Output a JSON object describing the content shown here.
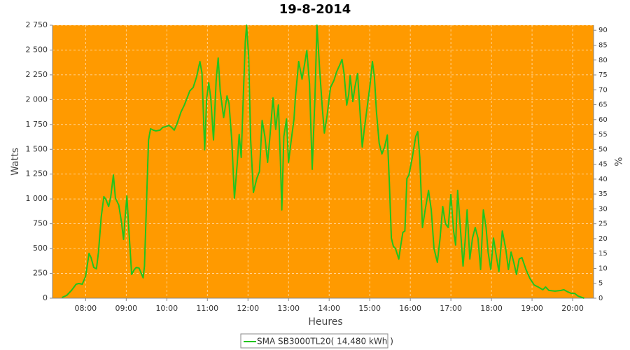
{
  "chart_data": {
    "type": "line",
    "title": "19-8-2014",
    "xlabel": "Heures",
    "ylabel": "Watts",
    "y2label": "%",
    "xlim": [
      431,
      1231
    ],
    "xticks": [
      {
        "value": 480,
        "label": "08:00"
      },
      {
        "value": 540,
        "label": "09:00"
      },
      {
        "value": 600,
        "label": "10:00"
      },
      {
        "value": 660,
        "label": "11:00"
      },
      {
        "value": 720,
        "label": "12:00"
      },
      {
        "value": 780,
        "label": "13:00"
      },
      {
        "value": 840,
        "label": "14:00"
      },
      {
        "value": 900,
        "label": "15:00"
      },
      {
        "value": 960,
        "label": "16:00"
      },
      {
        "value": 1020,
        "label": "17:00"
      },
      {
        "value": 1080,
        "label": "18:00"
      },
      {
        "value": 1140,
        "label": "19:00"
      },
      {
        "value": 1200,
        "label": "20:00"
      }
    ],
    "ylim": [
      0,
      2750
    ],
    "yticks": [
      0,
      250,
      500,
      750,
      {
        "value": 1000,
        "label": "1 000"
      },
      {
        "value": 1250,
        "label": "1 250"
      },
      {
        "value": 1500,
        "label": "1 500"
      },
      {
        "value": 1750,
        "label": "1 750"
      },
      {
        "value": 2000,
        "label": "2 000"
      },
      {
        "value": 2250,
        "label": "2 250"
      },
      {
        "value": 2500,
        "label": "2 500"
      },
      {
        "value": 2750,
        "label": "2 750"
      }
    ],
    "y2lim": [
      0,
      91.7
    ],
    "y2ticks": [
      0,
      5,
      10,
      15,
      20,
      25,
      30,
      35,
      40,
      45,
      50,
      55,
      60,
      65,
      70,
      75,
      80,
      85,
      90
    ],
    "grid": true,
    "legend": "bottom",
    "plot_background": "#ff9a00",
    "x": [
      445,
      452,
      459,
      466,
      470,
      475,
      480,
      485,
      488,
      492,
      496,
      499,
      503,
      507,
      510,
      514,
      517,
      521,
      524,
      529,
      533,
      536,
      538,
      541,
      544,
      548,
      552,
      555,
      559,
      562,
      565,
      567,
      570,
      573,
      576,
      580,
      584,
      590,
      594,
      599,
      603,
      607,
      611,
      615,
      621,
      626,
      630,
      634,
      639,
      644,
      649,
      652,
      656,
      659,
      662,
      665,
      669,
      673,
      676,
      679,
      684,
      689,
      692,
      696,
      700,
      704,
      707,
      710,
      713,
      716,
      718,
      721,
      724,
      728,
      733,
      737,
      741,
      745,
      749,
      752,
      757,
      761,
      765,
      768,
      770,
      773,
      777,
      780,
      784,
      788,
      790,
      795,
      800,
      804,
      807,
      811,
      815,
      819,
      822,
      826,
      830,
      833,
      837,
      842,
      847,
      851,
      856,
      859,
      862,
      866,
      869,
      871,
      875,
      878,
      882,
      885,
      889,
      892,
      896,
      900,
      904,
      907,
      910,
      914,
      918,
      922,
      926,
      929,
      932,
      935,
      938,
      943,
      946,
      949,
      952,
      955,
      958,
      963,
      968,
      971,
      974,
      978,
      982,
      987,
      991,
      995,
      1000,
      1004,
      1008,
      1012,
      1016,
      1020,
      1024,
      1027,
      1030,
      1034,
      1038,
      1041,
      1044,
      1048,
      1052,
      1056,
      1060,
      1064,
      1068,
      1072,
      1075,
      1079,
      1083,
      1087,
      1091,
      1096,
      1101,
      1105,
      1109,
      1113,
      1117,
      1121,
      1125,
      1131,
      1137,
      1143,
      1149,
      1156,
      1160,
      1165,
      1174,
      1183,
      1187,
      1193,
      1198,
      1203,
      1208,
      1214,
      1217
    ],
    "series": [
      {
        "name": "SMA SB3000TL20( 14,480 kWh )",
        "color": "#22c41e",
        "values": [
          7,
          28,
          78,
          141,
          148,
          141,
          219,
          451,
          409,
          310,
          296,
          465,
          818,
          1023,
          994,
          924,
          1016,
          1241,
          1008,
          938,
          762,
          592,
          783,
          1030,
          677,
          240,
          289,
          310,
          303,
          254,
          205,
          324,
          959,
          1594,
          1707,
          1693,
          1685,
          1693,
          1721,
          1728,
          1742,
          1721,
          1693,
          1756,
          1876,
          1946,
          2017,
          2087,
          2123,
          2228,
          2384,
          2271,
          1495,
          2017,
          2172,
          2017,
          1594,
          2193,
          2419,
          2087,
          1819,
          2038,
          1960,
          1594,
          1008,
          1347,
          1650,
          1417,
          2017,
          2581,
          2750,
          2440,
          1594,
          1065,
          1206,
          1276,
          1791,
          1629,
          1368,
          1594,
          2017,
          1700,
          1946,
          1382,
          889,
          1629,
          1805,
          1368,
          1594,
          1805,
          2017,
          2384,
          2207,
          2370,
          2496,
          2158,
          1298,
          2017,
          2750,
          2299,
          1911,
          1664,
          1840,
          2123,
          2193,
          2278,
          2355,
          2405,
          2264,
          1946,
          2052,
          2242,
          1981,
          2123,
          2264,
          1946,
          1523,
          1700,
          1911,
          2123,
          2384,
          2228,
          1876,
          1559,
          1453,
          1523,
          1643,
          1171,
          606,
          522,
          501,
          395,
          536,
          663,
          677,
          1206,
          1241,
          1417,
          1629,
          1678,
          1417,
          712,
          889,
          1086,
          889,
          501,
          360,
          606,
          924,
          748,
          712,
          1044,
          677,
          536,
          1086,
          712,
          324,
          571,
          889,
          395,
          606,
          712,
          606,
          289,
          889,
          712,
          465,
          289,
          606,
          430,
          268,
          677,
          501,
          289,
          465,
          360,
          240,
          395,
          409,
          289,
          197,
          134,
          113,
          85,
          113,
          78,
          71,
          78,
          85,
          63,
          49,
          49,
          21,
          7,
          0
        ]
      }
    ]
  }
}
